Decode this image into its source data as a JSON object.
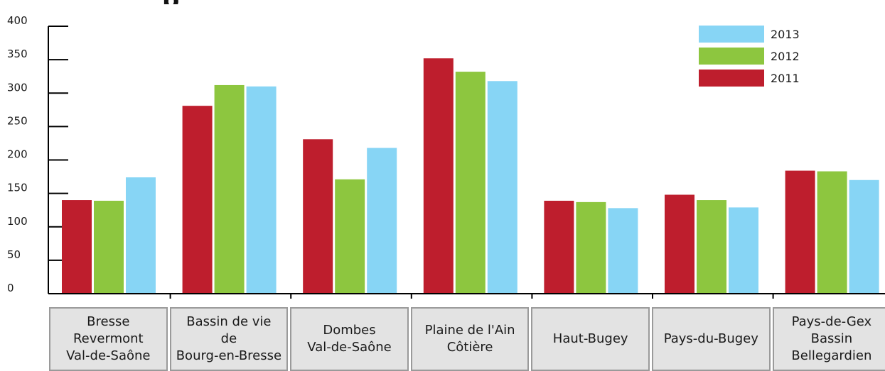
{
  "chart_data": {
    "type": "bar",
    "title": "p",
    "categories": [
      "Bresse\nRevermont\nVal-de-Saône",
      "Bassin de vie\nde\nBourg-en-Bresse",
      "Dombes\nVal-de-Saône",
      "Plaine de l'Ain\nCôtière",
      "Haut-Bugey",
      "Pays-du-Bugey",
      "Pays-de-Gex\nBassin\nBellegardien"
    ],
    "series": [
      {
        "name": "2011",
        "color": "#be1e2d",
        "values": [
          140,
          281,
          231,
          352,
          139,
          148,
          184
        ]
      },
      {
        "name": "2012",
        "color": "#8dc63f",
        "values": [
          139,
          312,
          171,
          332,
          137,
          140,
          183
        ]
      },
      {
        "name": "2013",
        "color": "#87d5f5",
        "values": [
          174,
          310,
          218,
          318,
          128,
          129,
          170
        ]
      }
    ],
    "yticks": [
      "0",
      "50",
      "100",
      "150",
      "200",
      "250",
      "300",
      "350",
      "400"
    ],
    "ylim": [
      0,
      400
    ],
    "xlabel": "",
    "ylabel": "",
    "legend": {
      "position": "top-right",
      "order": [
        "2013",
        "2012",
        "2011"
      ]
    },
    "grid": false
  }
}
